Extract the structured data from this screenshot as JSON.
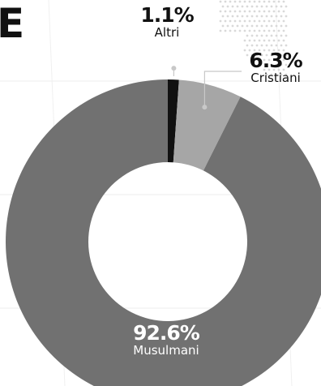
{
  "heading_fragment": "E",
  "chart_data": {
    "type": "pie",
    "variant": "donut",
    "title": "",
    "slices": [
      {
        "label": "Altri",
        "value": 1.1,
        "display": "1.1%",
        "color": "#111111"
      },
      {
        "label": "Cristiani",
        "value": 6.3,
        "display": "6.3%",
        "color": "#a6a6a6"
      },
      {
        "label": "Musulmani",
        "value": 92.6,
        "display": "92.6%",
        "color": "#717171"
      }
    ],
    "legend": "none",
    "labels": "outside for small slices, inside for largest"
  }
}
